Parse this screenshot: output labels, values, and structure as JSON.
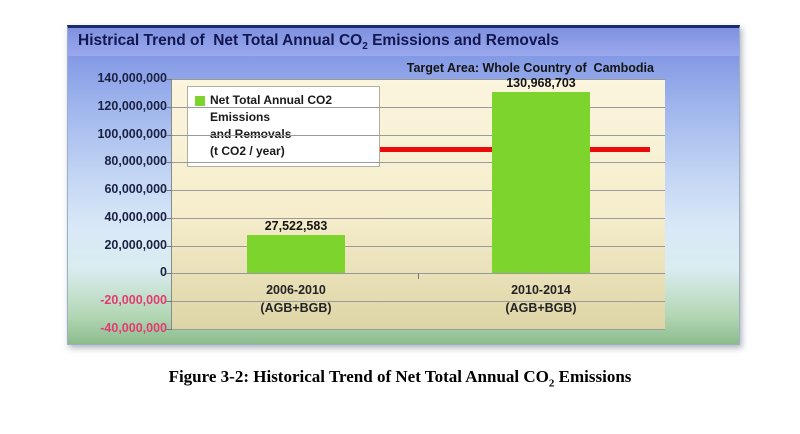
{
  "figure": {
    "chart_title": {
      "prefix": "Histrical Trend of  Net Total Annual CO",
      "subscript": "2",
      "suffix": " Emissions and Removals"
    },
    "target_area": "Target Area: Whole Country of  Cambodia",
    "legend": {
      "line1": "Net Total Annual CO2 Emissions",
      "line2": "and Removals",
      "line3": "(t CO2 / year)"
    }
  },
  "caption": {
    "prefix": "Figure 3-2: Historical Trend of Net Total Annual CO",
    "subscript": "2",
    "suffix": " Emissions"
  },
  "chart_data": {
    "type": "bar",
    "title": "Histrical Trend of Net Total Annual CO2 Emissions and Removals",
    "subtitle": "Target Area: Whole Country of Cambodia",
    "series_name": "Net Total Annual CO2 Emissions and Removals (t CO2 / year)",
    "categories": [
      {
        "period": "2006-2010",
        "qualifier": "(AGB+BGB)"
      },
      {
        "period": "2010-2014",
        "qualifier": "(AGB+BGB)"
      }
    ],
    "values": [
      27522583,
      130968703
    ],
    "value_labels": [
      "27,522,583",
      "130,968,703"
    ],
    "y_tick_labels": [
      "140,000,000",
      "120,000,000",
      "100,000,000",
      "80,000,000",
      "60,000,000",
      "40,000,000",
      "20,000,000",
      "0",
      "-20,000,000",
      "-40,000,000"
    ],
    "ylim": [
      -40000000,
      140000000
    ],
    "y_tick_step": 20000000,
    "grid": true,
    "legend_position": "top-left",
    "bar_color": "#7cd42c",
    "negative_tick_color": "#e43b6f",
    "reference_line": {
      "value": 89000000,
      "color": "#ea0b0b"
    }
  }
}
